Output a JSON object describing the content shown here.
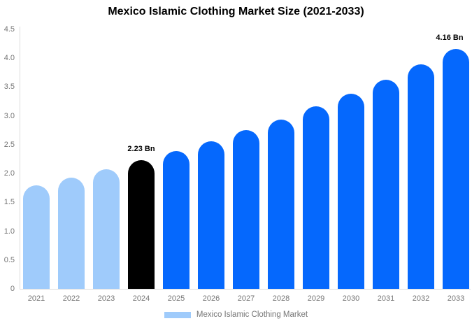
{
  "colors": {
    "bar_light_blue": "#9FCBFB",
    "bar_black": "#000000",
    "bar_bright_blue": "#0568FD",
    "axis_line": "#dcdcdc",
    "tick_text": "#757575",
    "title_text": "#000000"
  },
  "chart_data": {
    "type": "bar",
    "title": "Mexico Islamic Clothing Market Size (2021-2033)",
    "xlabel": "",
    "ylabel": "",
    "categories": [
      "2021",
      "2022",
      "2023",
      "2024",
      "2025",
      "2026",
      "2027",
      "2028",
      "2029",
      "2030",
      "2031",
      "2032",
      "2033"
    ],
    "values": [
      1.79,
      1.93,
      2.07,
      2.23,
      2.39,
      2.56,
      2.75,
      2.94,
      3.16,
      3.38,
      3.63,
      3.89,
      4.16
    ],
    "bar_colors": [
      "#9FCBFB",
      "#9FCBFB",
      "#9FCBFB",
      "#000000",
      "#0568FD",
      "#0568FD",
      "#0568FD",
      "#0568FD",
      "#0568FD",
      "#0568FD",
      "#0568FD",
      "#0568FD",
      "#0568FD"
    ],
    "annotations": [
      {
        "index": 3,
        "text": "2.23 Bn"
      },
      {
        "index": 12,
        "text": "4.16 Bn"
      }
    ],
    "ylim": [
      0,
      4.5
    ],
    "ytick_labels": [
      "0",
      "0.5",
      "1.0",
      "1.5",
      "2.0",
      "2.5",
      "3.0",
      "3.5",
      "4.0",
      "4.5"
    ],
    "ytick_values": [
      0,
      0.5,
      1.0,
      1.5,
      2.0,
      2.5,
      3.0,
      3.5,
      4.0,
      4.5
    ],
    "grid": false,
    "legend": {
      "position": "bottom",
      "label": "Mexico Islamic Clothing Market",
      "swatch_color": "#9FCBFB"
    }
  }
}
